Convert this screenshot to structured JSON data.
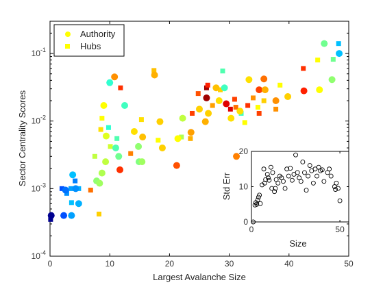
{
  "chart_data": [
    {
      "type": "scatter",
      "xlabel": "Largest Avalanche Size",
      "ylabel": "Sector Centrality Scores",
      "xlim": [
        0,
        50
      ],
      "ylim": [
        0.0001,
        0.3
      ],
      "yscale": "log",
      "xticks": [
        "0",
        "10",
        "20",
        "30",
        "40",
        "50"
      ],
      "yticks": [
        {
          "value": 0.0001,
          "base": "10",
          "exp": "-4"
        },
        {
          "value": 0.001,
          "base": "10",
          "exp": "-3"
        },
        {
          "value": 0.01,
          "base": "10",
          "exp": "-2"
        },
        {
          "value": 0.1,
          "base": "10",
          "exp": "-1"
        }
      ],
      "grid": false,
      "legend_position": "top-left",
      "color_note": "markers colored from blue (small sizes) through cyan, green, yellow, orange, red to dark red",
      "series": [
        {
          "name": "Authority",
          "marker": "circle",
          "points": [
            [
              0.2,
              0.0004,
              "#000090"
            ],
            [
              2.3,
              0.0004,
              "#0050ff"
            ],
            [
              3.6,
              0.0004,
              "#00a0ff"
            ],
            [
              2.6,
              0.00095,
              "#0070ff"
            ],
            [
              4.3,
              0.001,
              "#0090ff"
            ],
            [
              4.8,
              0.0006,
              "#00b0ff"
            ],
            [
              3.8,
              0.0016,
              "#00c0ff"
            ],
            [
              7.8,
              0.0013,
              "#90ff70"
            ],
            [
              8.3,
              0.0012,
              "#a0ff60"
            ],
            [
              9.3,
              0.0025,
              "#c0ff40"
            ],
            [
              8.7,
              0.0017,
              "#b0ff50"
            ],
            [
              9.4,
              0.006,
              "#e0ff20"
            ],
            [
              9.0,
              0.017,
              "#ffff00"
            ],
            [
              10.0,
              0.037,
              "#30ffd0"
            ],
            [
              10.8,
              0.045,
              "#ff9000"
            ],
            [
              11.0,
              0.004,
              "#50ffb0"
            ],
            [
              11.5,
              0.003,
              "#70ff90"
            ],
            [
              11.7,
              0.0019,
              "#ff3000"
            ],
            [
              12.5,
              0.017,
              "#40ffc0"
            ],
            [
              14.1,
              0.007,
              "#ffe000"
            ],
            [
              14.8,
              0.0042,
              "#90ff70"
            ],
            [
              14.9,
              0.0025,
              "#80ff80"
            ],
            [
              15.4,
              0.0025,
              "#a0ff60"
            ],
            [
              15.5,
              0.0058,
              "#ffc000"
            ],
            [
              17.5,
              0.048,
              "#ffb000"
            ],
            [
              18.4,
              0.0098,
              "#ffd000"
            ],
            [
              18.8,
              0.004,
              "#ffd000"
            ],
            [
              21.2,
              0.0022,
              "#ff5000"
            ],
            [
              21.4,
              0.0055,
              "#ffff00"
            ],
            [
              22.2,
              0.011,
              "#c0ff40"
            ],
            [
              23.6,
              0.0068,
              "#ffa000"
            ],
            [
              25.0,
              0.015,
              "#ffd000"
            ],
            [
              26.0,
              0.0098,
              "#ffb000"
            ],
            [
              26.2,
              0.022,
              "#a00000"
            ],
            [
              26.5,
              0.013,
              "#ffd000"
            ],
            [
              27.8,
              0.031,
              "#ffc000"
            ],
            [
              28.3,
              0.02,
              "#ffe000"
            ],
            [
              29.2,
              0.031,
              "#40ffc0"
            ],
            [
              29.5,
              0.018,
              "#e00000"
            ],
            [
              30.3,
              0.011,
              "#ffe000"
            ],
            [
              31.2,
              0.003,
              "#ff8000"
            ],
            [
              31.8,
              0.014,
              "#ffe000"
            ],
            [
              33.3,
              0.041,
              "#ffe000"
            ],
            [
              35.0,
              0.029,
              "#ff4000"
            ],
            [
              35.8,
              0.042,
              "#ff7000"
            ],
            [
              36.0,
              0.029,
              "#ffb000"
            ],
            [
              37.8,
              0.02,
              "#ff9000"
            ],
            [
              39.8,
              0.023,
              "#ffd000"
            ],
            [
              42.5,
              0.028,
              "#ff2000"
            ],
            [
              45.1,
              0.029,
              "#ffff00"
            ],
            [
              45.9,
              0.14,
              "#70ff90"
            ],
            [
              47.2,
              0.041,
              "#90ff70"
            ],
            [
              48.4,
              0.1,
              "#00c0ff"
            ]
          ]
        },
        {
          "name": "Hubs",
          "marker": "square",
          "points": [
            [
              0.1,
              0.00035,
              "#000090"
            ],
            [
              2.0,
              0.001,
              "#0050ff"
            ],
            [
              2.8,
              0.00085,
              "#0090ff"
            ],
            [
              3.5,
              0.001,
              "#00a0ff"
            ],
            [
              3.6,
              0.00062,
              "#00c0ff"
            ],
            [
              4.2,
              0.0013,
              "#0080ff"
            ],
            [
              4.8,
              0.001,
              "#00b0ff"
            ],
            [
              6.8,
              0.00095,
              "#ff7000"
            ],
            [
              7.5,
              0.003,
              "#c0ff40"
            ],
            [
              8.2,
              0.00042,
              "#ffd000"
            ],
            [
              8.5,
              0.0075,
              "#ffe000"
            ],
            [
              8.7,
              0.011,
              "#ffff00"
            ],
            [
              9.8,
              0.008,
              "#30ffd0"
            ],
            [
              10.1,
              0.0042,
              "#d0ff30"
            ],
            [
              11.2,
              0.0055,
              "#50ffb0"
            ],
            [
              11.8,
              0.031,
              "#ff3000"
            ],
            [
              13.5,
              0.0033,
              "#ff8000"
            ],
            [
              15.3,
              0.0105,
              "#ffe000"
            ],
            [
              17.4,
              0.056,
              "#ffc000"
            ],
            [
              18.1,
              0.0052,
              "#ffff00"
            ],
            [
              22.0,
              0.0058,
              "#b0ff50"
            ],
            [
              23.5,
              0.0055,
              "#ffb000"
            ],
            [
              23.8,
              0.013,
              "#ff4000"
            ],
            [
              24.8,
              0.0255,
              "#ff5000"
            ],
            [
              26.2,
              0.031,
              "#a00000"
            ],
            [
              26.4,
              0.034,
              "#ff2000"
            ],
            [
              27.2,
              0.017,
              "#ffa000"
            ],
            [
              28.5,
              0.029,
              "#ffd000"
            ],
            [
              28.9,
              0.055,
              "#50ffb0"
            ],
            [
              30.2,
              0.015,
              "#e00000"
            ],
            [
              30.9,
              0.021,
              "#ff4000"
            ],
            [
              31.1,
              0.016,
              "#ff7000"
            ],
            [
              32.0,
              0.013,
              "#40ffc0"
            ],
            [
              32.6,
              0.0095,
              "#ffff00"
            ],
            [
              33.1,
              0.017,
              "#ff3000"
            ],
            [
              34.0,
              0.022,
              "#ff9000"
            ],
            [
              34.8,
              0.016,
              "#ffff00"
            ],
            [
              35.0,
              0.013,
              "#ff4000"
            ],
            [
              35.8,
              0.02,
              "#ffd000"
            ],
            [
              37.8,
              0.015,
              "#ff9000"
            ],
            [
              38.5,
              0.034,
              "#ffff00"
            ],
            [
              42.4,
              0.06,
              "#ff3000"
            ],
            [
              44.8,
              0.08,
              "#ffff00"
            ],
            [
              47.4,
              0.082,
              "#70ff90"
            ],
            [
              48.3,
              0.14,
              "#00c0ff"
            ]
          ]
        }
      ]
    },
    {
      "type": "scatter",
      "xlabel": "Size",
      "ylabel": "Std Err",
      "xlim": [
        0,
        55
      ],
      "ylim": [
        0,
        20
      ],
      "xticks": [
        "0",
        "50"
      ],
      "yticks": [
        "0",
        "10",
        "20"
      ],
      "marker": "open-circle",
      "points": [
        [
          1,
          0
        ],
        [
          2,
          4.8
        ],
        [
          2.5,
          5.5
        ],
        [
          3,
          5
        ],
        [
          3.5,
          6.2
        ],
        [
          4,
          7
        ],
        [
          4.5,
          7.6
        ],
        [
          5,
          5.2
        ],
        [
          6,
          10.5
        ],
        [
          7,
          15
        ],
        [
          7.5,
          11
        ],
        [
          8,
          12
        ],
        [
          9,
          13.5
        ],
        [
          9.5,
          12.5
        ],
        [
          10,
          11.8
        ],
        [
          11,
          15.5
        ],
        [
          11.5,
          9.5
        ],
        [
          12,
          14
        ],
        [
          13,
          8.6
        ],
        [
          13.5,
          9.5
        ],
        [
          14,
          12
        ],
        [
          15,
          11
        ],
        [
          16,
          13
        ],
        [
          17,
          12.5
        ],
        [
          18,
          11.5
        ],
        [
          19,
          9.5
        ],
        [
          20,
          15
        ],
        [
          21,
          13
        ],
        [
          22,
          15.2
        ],
        [
          23,
          11.8
        ],
        [
          24,
          13.5
        ],
        [
          25,
          19
        ],
        [
          26,
          14
        ],
        [
          27,
          12.5
        ],
        [
          28,
          11.5
        ],
        [
          29,
          17
        ],
        [
          30,
          14
        ],
        [
          31,
          9
        ],
        [
          32,
          13
        ],
        [
          33,
          16
        ],
        [
          34,
          14.5
        ],
        [
          35,
          11
        ],
        [
          36,
          15
        ],
        [
          37,
          13
        ],
        [
          38,
          15.5
        ],
        [
          39,
          14.5
        ],
        [
          40,
          14.8
        ],
        [
          41,
          11.5
        ],
        [
          43,
          14
        ],
        [
          44,
          15
        ],
        [
          45,
          13
        ],
        [
          47,
          10
        ],
        [
          47.5,
          9.2
        ],
        [
          48,
          11
        ],
        [
          49,
          9.5
        ],
        [
          50,
          6
        ]
      ]
    }
  ]
}
